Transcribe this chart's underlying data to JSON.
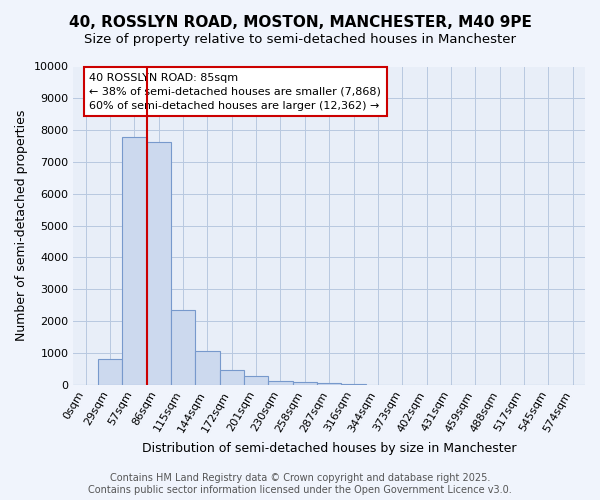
{
  "title": "40, ROSSLYN ROAD, MOSTON, MANCHESTER, M40 9PE",
  "subtitle": "Size of property relative to semi-detached houses in Manchester",
  "xlabel": "Distribution of semi-detached houses by size in Manchester",
  "ylabel": "Number of semi-detached properties",
  "bin_labels": [
    "0sqm",
    "29sqm",
    "57sqm",
    "86sqm",
    "115sqm",
    "144sqm",
    "172sqm",
    "201sqm",
    "230sqm",
    "258sqm",
    "287sqm",
    "316sqm",
    "344sqm",
    "373sqm",
    "402sqm",
    "431sqm",
    "459sqm",
    "488sqm",
    "517sqm",
    "545sqm",
    "574sqm"
  ],
  "bar_heights": [
    0,
    820,
    7800,
    7620,
    2350,
    1050,
    450,
    280,
    120,
    100,
    55,
    30,
    0,
    0,
    0,
    0,
    0,
    0,
    0,
    0,
    0
  ],
  "bar_color": "#ccd9ee",
  "bar_edge_color": "#7799cc",
  "vline_color": "#cc0000",
  "annotation_text": "40 ROSSLYN ROAD: 85sqm\n← 38% of semi-detached houses are smaller (7,868)\n60% of semi-detached houses are larger (12,362) →",
  "annotation_box_color": "#ffffff",
  "annotation_box_edge": "#cc0000",
  "ylim": [
    0,
    10000
  ],
  "yticks": [
    0,
    1000,
    2000,
    3000,
    4000,
    5000,
    6000,
    7000,
    8000,
    9000,
    10000
  ],
  "plot_bg_color": "#e8eef8",
  "background_color": "#f0f4fc",
  "grid_color": "#b8c8e0",
  "footer_text": "Contains HM Land Registry data © Crown copyright and database right 2025.\nContains public sector information licensed under the Open Government Licence v3.0.",
  "title_fontsize": 11,
  "subtitle_fontsize": 9.5,
  "axis_label_fontsize": 9,
  "tick_fontsize": 8,
  "annotation_fontsize": 8,
  "footer_fontsize": 7
}
